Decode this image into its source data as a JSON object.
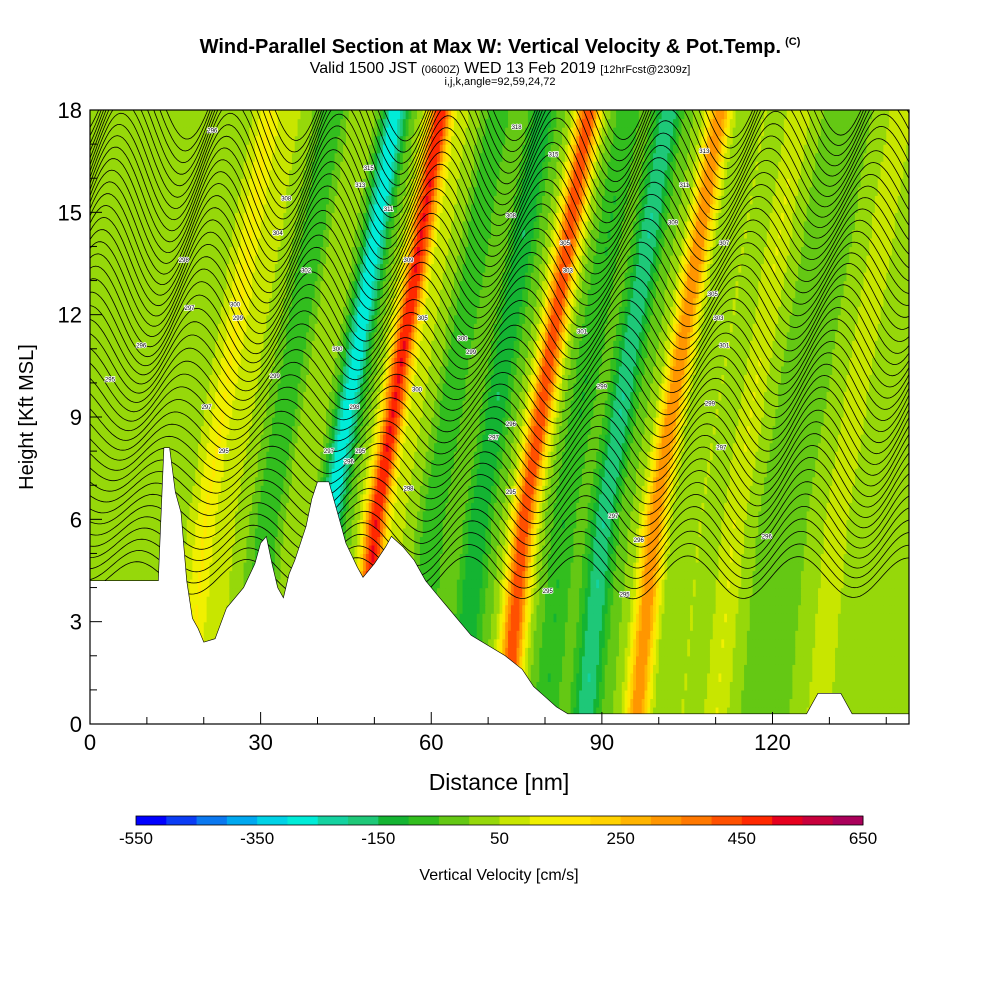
{
  "title": {
    "main": "Wind-Parallel Section at Max W: Vertical Velocity & Pot.Temp.",
    "copyright": "(C)",
    "valid_prefix": "Valid 1500 JST",
    "valid_utc": "(0600Z)",
    "valid_date": "WED 13 Feb 2019",
    "forecast": "[12hrFcst@2309z]",
    "indices": "i,j,k,angle=92,59,24,72"
  },
  "chart_data": {
    "type": "heatmap",
    "xlabel": "Distance [nm]",
    "ylabel": "Height [Kft MSL]",
    "xlim": [
      0,
      144
    ],
    "ylim": [
      0,
      18
    ],
    "x_ticks": [
      0,
      30,
      60,
      90,
      120
    ],
    "y_ticks": [
      0,
      3,
      6,
      9,
      12,
      15,
      18
    ],
    "colorbar": {
      "label": "Vertical Velocity [cm/s]",
      "min": -550,
      "max": 650,
      "step": 50,
      "tick_labels": [
        "-550",
        "-350",
        "-150",
        "50",
        "250",
        "450",
        "650"
      ],
      "colors": [
        "#0000ff",
        "#0a3cf5",
        "#0a78f0",
        "#00a8f0",
        "#00d2e6",
        "#00ecd8",
        "#14d2a0",
        "#1ec878",
        "#14b432",
        "#32be1e",
        "#64c814",
        "#96d80a",
        "#c8e600",
        "#f0f000",
        "#ffe600",
        "#ffd200",
        "#ffb400",
        "#ff9600",
        "#ff7800",
        "#ff5000",
        "#ff2800",
        "#e6001e",
        "#c8003c",
        "#aa005a",
        "#8c0078",
        "#6e0096",
        "#500096"
      ]
    },
    "bands": [
      {
        "x": 12,
        "w": 40
      },
      {
        "x": 17,
        "w": 150
      },
      {
        "x": 22,
        "w": 50
      },
      {
        "x": 28,
        "w": -100
      },
      {
        "x": 33,
        "w": 50
      },
      {
        "x": 39,
        "w": -300
      },
      {
        "x": 47,
        "w": 500
      },
      {
        "x": 52,
        "w": 50
      },
      {
        "x": 57,
        "w": -100
      },
      {
        "x": 65,
        "w": -150
      },
      {
        "x": 73,
        "w": 450
      },
      {
        "x": 80,
        "w": -100
      },
      {
        "x": 87,
        "w": -200
      },
      {
        "x": 96,
        "w": 350
      },
      {
        "x": 104,
        "w": 50
      },
      {
        "x": 110,
        "w": 100
      },
      {
        "x": 118,
        "w": -50
      },
      {
        "x": 128,
        "w": 100
      },
      {
        "x": 138,
        "w": 0
      }
    ],
    "terrain": [
      [
        0,
        4.2
      ],
      [
        12,
        4.2
      ],
      [
        13,
        8.1
      ],
      [
        14,
        8.1
      ],
      [
        15,
        6.8
      ],
      [
        16,
        6.2
      ],
      [
        17,
        4.2
      ],
      [
        18,
        3.1
      ],
      [
        19,
        2.8
      ],
      [
        20,
        2.4
      ],
      [
        22,
        2.5
      ],
      [
        24,
        3.4
      ],
      [
        27,
        4.0
      ],
      [
        29,
        4.7
      ],
      [
        30,
        5.3
      ],
      [
        31,
        5.5
      ],
      [
        32,
        4.7
      ],
      [
        33,
        4.0
      ],
      [
        34,
        3.7
      ],
      [
        35,
        4.4
      ],
      [
        36,
        4.8
      ],
      [
        38,
        5.8
      ],
      [
        39,
        6.6
      ],
      [
        40,
        7.1
      ],
      [
        42,
        7.1
      ],
      [
        43,
        6.5
      ],
      [
        44,
        5.9
      ],
      [
        45,
        5.3
      ],
      [
        47,
        4.6
      ],
      [
        48,
        4.3
      ],
      [
        50,
        4.7
      ],
      [
        52,
        5.2
      ],
      [
        53,
        5.5
      ],
      [
        55,
        5.2
      ],
      [
        57,
        4.8
      ],
      [
        59,
        4.2
      ],
      [
        61,
        3.8
      ],
      [
        63,
        3.4
      ],
      [
        65,
        3.0
      ],
      [
        67,
        2.6
      ],
      [
        70,
        2.3
      ],
      [
        73,
        2.0
      ],
      [
        76,
        1.6
      ],
      [
        78,
        1.1
      ],
      [
        80,
        0.8
      ],
      [
        82,
        0.5
      ],
      [
        84,
        0.3
      ],
      [
        90,
        0.3
      ],
      [
        100,
        0.3
      ],
      [
        110,
        0.3
      ],
      [
        126,
        0.3
      ],
      [
        127,
        0.6
      ],
      [
        128,
        0.9
      ],
      [
        132,
        0.9
      ],
      [
        133,
        0.6
      ],
      [
        134,
        0.3
      ],
      [
        144,
        0.3
      ]
    ],
    "contour_labels": [
      {
        "x": 21.5,
        "y": 17.4,
        "text": "296"
      },
      {
        "x": 34.5,
        "y": 15.4,
        "text": "308"
      },
      {
        "x": 33,
        "y": 14.4,
        "text": "304"
      },
      {
        "x": 25.5,
        "y": 12.3,
        "text": "300"
      },
      {
        "x": 26,
        "y": 11.9,
        "text": "299"
      },
      {
        "x": 16.5,
        "y": 13.6,
        "text": "298"
      },
      {
        "x": 17.5,
        "y": 12.2,
        "text": "297"
      },
      {
        "x": 9,
        "y": 11.1,
        "text": "296"
      },
      {
        "x": 3.5,
        "y": 10.1,
        "text": "295"
      },
      {
        "x": 20.5,
        "y": 9.3,
        "text": "297"
      },
      {
        "x": 23.5,
        "y": 8.0,
        "text": "295"
      },
      {
        "x": 32.5,
        "y": 10.2,
        "text": "299"
      },
      {
        "x": 38,
        "y": 13.3,
        "text": "302"
      },
      {
        "x": 43.5,
        "y": 11.0,
        "text": "300"
      },
      {
        "x": 46.5,
        "y": 9.3,
        "text": "298"
      },
      {
        "x": 42,
        "y": 8.0,
        "text": "297"
      },
      {
        "x": 45.5,
        "y": 7.7,
        "text": "296"
      },
      {
        "x": 47.5,
        "y": 8.0,
        "text": "295"
      },
      {
        "x": 49,
        "y": 16.3,
        "text": "315"
      },
      {
        "x": 47.5,
        "y": 15.8,
        "text": "313"
      },
      {
        "x": 52.5,
        "y": 15.1,
        "text": "311"
      },
      {
        "x": 56,
        "y": 13.6,
        "text": "309"
      },
      {
        "x": 58.5,
        "y": 11.9,
        "text": "305"
      },
      {
        "x": 57.5,
        "y": 9.8,
        "text": "300"
      },
      {
        "x": 56,
        "y": 6.9,
        "text": "298"
      },
      {
        "x": 65.5,
        "y": 11.3,
        "text": "300"
      },
      {
        "x": 67,
        "y": 10.9,
        "text": "299"
      },
      {
        "x": 71,
        "y": 8.4,
        "text": "297"
      },
      {
        "x": 74,
        "y": 8.8,
        "text": "296"
      },
      {
        "x": 74,
        "y": 6.8,
        "text": "295"
      },
      {
        "x": 75,
        "y": 17.5,
        "text": "318"
      },
      {
        "x": 74,
        "y": 14.9,
        "text": "308"
      },
      {
        "x": 81.5,
        "y": 16.7,
        "text": "315"
      },
      {
        "x": 83.5,
        "y": 14.1,
        "text": "305"
      },
      {
        "x": 84,
        "y": 13.3,
        "text": "303"
      },
      {
        "x": 86.5,
        "y": 11.5,
        "text": "301"
      },
      {
        "x": 90,
        "y": 9.9,
        "text": "299"
      },
      {
        "x": 92,
        "y": 6.1,
        "text": "297"
      },
      {
        "x": 96.5,
        "y": 5.4,
        "text": "296"
      },
      {
        "x": 94,
        "y": 3.8,
        "text": "295"
      },
      {
        "x": 80.5,
        "y": 3.9,
        "text": "295"
      },
      {
        "x": 108,
        "y": 16.8,
        "text": "313"
      },
      {
        "x": 104.5,
        "y": 15.8,
        "text": "311"
      },
      {
        "x": 102.5,
        "y": 14.7,
        "text": "309"
      },
      {
        "x": 111.5,
        "y": 14.1,
        "text": "307"
      },
      {
        "x": 109.5,
        "y": 12.6,
        "text": "305"
      },
      {
        "x": 110.5,
        "y": 11.9,
        "text": "303"
      },
      {
        "x": 111.5,
        "y": 11.1,
        "text": "301"
      },
      {
        "x": 109,
        "y": 9.4,
        "text": "299"
      },
      {
        "x": 111,
        "y": 8.1,
        "text": "297"
      },
      {
        "x": 119,
        "y": 5.5,
        "text": "296"
      }
    ]
  }
}
